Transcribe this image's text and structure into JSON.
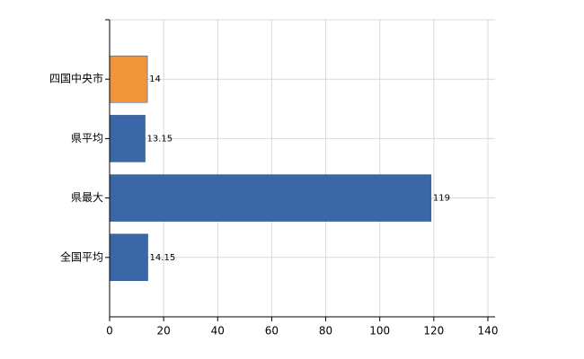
{
  "chart_data": {
    "type": "hbar",
    "categories": [
      "四国中央市",
      "県平均",
      "県最大",
      "全国平均"
    ],
    "values": [
      14,
      13.15,
      119,
      14.15
    ],
    "colors": [
      "#f0963a",
      "#3a67a8",
      "#3a67a8",
      "#3a67a8"
    ],
    "xlim": [
      0,
      140
    ],
    "xticks": [
      0,
      20,
      40,
      60,
      80,
      100,
      120,
      140
    ],
    "grid": true
  }
}
